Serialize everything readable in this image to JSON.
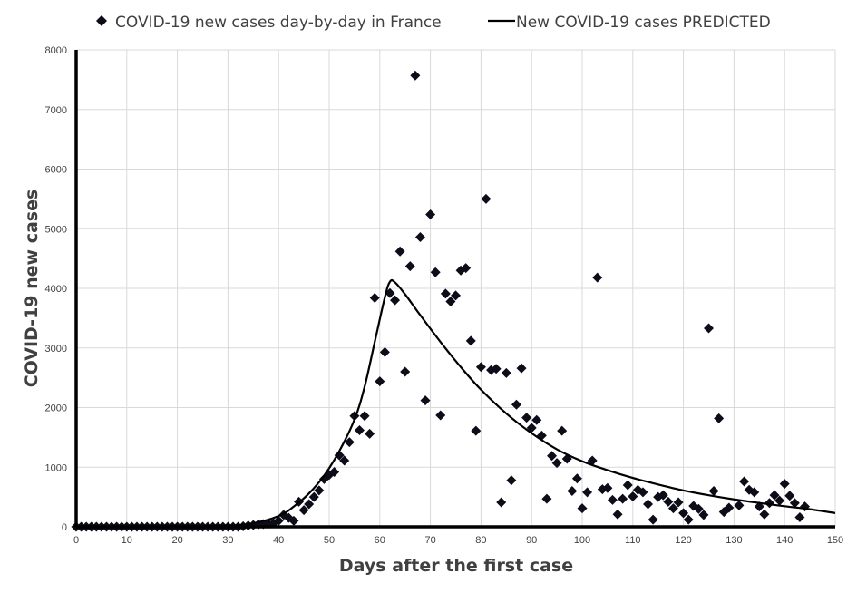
{
  "chart_data": {
    "type": "scatter",
    "title": "",
    "xlabel": "Days after the first case",
    "ylabel": "COVID-19 new cases",
    "xlim": [
      0,
      150
    ],
    "ylim": [
      0,
      8000
    ],
    "x_ticks": [
      0,
      10,
      20,
      30,
      40,
      50,
      60,
      70,
      80,
      90,
      100,
      110,
      120,
      130,
      140,
      150
    ],
    "y_ticks": [
      0,
      1000,
      2000,
      3000,
      4000,
      5000,
      6000,
      7000,
      8000
    ],
    "grid": true,
    "legend_position": "top",
    "series": [
      {
        "name": "COVID-19 new cases day-by-day in France",
        "kind": "markers",
        "marker": "diamond",
        "color": "#0d0d1a",
        "points": [
          [
            0,
            0
          ],
          [
            1,
            0
          ],
          [
            2,
            0
          ],
          [
            3,
            0
          ],
          [
            4,
            0
          ],
          [
            5,
            0
          ],
          [
            6,
            0
          ],
          [
            7,
            0
          ],
          [
            8,
            0
          ],
          [
            9,
            0
          ],
          [
            10,
            0
          ],
          [
            11,
            0
          ],
          [
            12,
            0
          ],
          [
            13,
            0
          ],
          [
            14,
            0
          ],
          [
            15,
            0
          ],
          [
            16,
            0
          ],
          [
            17,
            0
          ],
          [
            18,
            0
          ],
          [
            19,
            0
          ],
          [
            20,
            0
          ],
          [
            21,
            0
          ],
          [
            22,
            0
          ],
          [
            23,
            0
          ],
          [
            24,
            0
          ],
          [
            25,
            0
          ],
          [
            26,
            0
          ],
          [
            27,
            0
          ],
          [
            28,
            0
          ],
          [
            29,
            0
          ],
          [
            30,
            0
          ],
          [
            31,
            0
          ],
          [
            32,
            0
          ],
          [
            33,
            10
          ],
          [
            34,
            20
          ],
          [
            35,
            30
          ],
          [
            36,
            40
          ],
          [
            37,
            45
          ],
          [
            38,
            55
          ],
          [
            39,
            60
          ],
          [
            40,
            100
          ],
          [
            41,
            200
          ],
          [
            42,
            150
          ],
          [
            43,
            100
          ],
          [
            44,
            420
          ],
          [
            45,
            280
          ],
          [
            46,
            380
          ],
          [
            47,
            500
          ],
          [
            48,
            610
          ],
          [
            49,
            800
          ],
          [
            50,
            870
          ],
          [
            51,
            920
          ],
          [
            52,
            1200
          ],
          [
            53,
            1110
          ],
          [
            54,
            1420
          ],
          [
            55,
            1860
          ],
          [
            56,
            1620
          ],
          [
            57,
            1860
          ],
          [
            58,
            1560
          ],
          [
            59,
            3840
          ],
          [
            60,
            2440
          ],
          [
            61,
            2930
          ],
          [
            62,
            3920
          ],
          [
            63,
            3800
          ],
          [
            64,
            4620
          ],
          [
            65,
            2600
          ],
          [
            66,
            4370
          ],
          [
            67,
            7570
          ],
          [
            68,
            4860
          ],
          [
            69,
            2120
          ],
          [
            70,
            5240
          ],
          [
            71,
            4270
          ],
          [
            72,
            1870
          ],
          [
            73,
            3910
          ],
          [
            74,
            3780
          ],
          [
            75,
            3880
          ],
          [
            76,
            4300
          ],
          [
            77,
            4340
          ],
          [
            78,
            3120
          ],
          [
            79,
            1610
          ],
          [
            80,
            2680
          ],
          [
            81,
            5500
          ],
          [
            82,
            2630
          ],
          [
            83,
            2650
          ],
          [
            84,
            410
          ],
          [
            85,
            2580
          ],
          [
            86,
            780
          ],
          [
            87,
            2050
          ],
          [
            88,
            2660
          ],
          [
            89,
            1830
          ],
          [
            90,
            1660
          ],
          [
            91,
            1790
          ],
          [
            92,
            1530
          ],
          [
            93,
            470
          ],
          [
            94,
            1190
          ],
          [
            95,
            1070
          ],
          [
            96,
            1610
          ],
          [
            97,
            1140
          ],
          [
            98,
            600
          ],
          [
            99,
            810
          ],
          [
            100,
            310
          ],
          [
            101,
            580
          ],
          [
            102,
            1110
          ],
          [
            103,
            4180
          ],
          [
            104,
            630
          ],
          [
            105,
            650
          ],
          [
            106,
            450
          ],
          [
            107,
            210
          ],
          [
            108,
            470
          ],
          [
            109,
            700
          ],
          [
            110,
            510
          ],
          [
            111,
            620
          ],
          [
            112,
            580
          ],
          [
            113,
            380
          ],
          [
            114,
            120
          ],
          [
            115,
            500
          ],
          [
            116,
            530
          ],
          [
            117,
            420
          ],
          [
            118,
            310
          ],
          [
            119,
            410
          ],
          [
            120,
            230
          ],
          [
            121,
            120
          ],
          [
            122,
            350
          ],
          [
            123,
            300
          ],
          [
            124,
            200
          ],
          [
            125,
            3330
          ],
          [
            126,
            600
          ],
          [
            127,
            1820
          ],
          [
            128,
            250
          ],
          [
            129,
            320
          ],
          [
            131,
            360
          ],
          [
            132,
            760
          ],
          [
            133,
            620
          ],
          [
            134,
            580
          ],
          [
            135,
            340
          ],
          [
            136,
            210
          ],
          [
            137,
            400
          ],
          [
            138,
            530
          ],
          [
            139,
            440
          ],
          [
            140,
            720
          ],
          [
            141,
            520
          ],
          [
            142,
            400
          ],
          [
            143,
            160
          ],
          [
            144,
            340
          ]
        ]
      },
      {
        "name": "New COVID-19 cases PREDICTED",
        "kind": "line",
        "color": "#000000",
        "points": [
          [
            0,
            0
          ],
          [
            10,
            0
          ],
          [
            20,
            0
          ],
          [
            30,
            15
          ],
          [
            35,
            60
          ],
          [
            40,
            180
          ],
          [
            43,
            340
          ],
          [
            46,
            560
          ],
          [
            49,
            860
          ],
          [
            52,
            1270
          ],
          [
            55,
            1800
          ],
          [
            57,
            2350
          ],
          [
            59,
            3100
          ],
          [
            61,
            3850
          ],
          [
            62,
            4110
          ],
          [
            63,
            4100
          ],
          [
            65,
            3900
          ],
          [
            68,
            3550
          ],
          [
            72,
            3100
          ],
          [
            76,
            2680
          ],
          [
            80,
            2300
          ],
          [
            85,
            1900
          ],
          [
            90,
            1570
          ],
          [
            95,
            1300
          ],
          [
            100,
            1100
          ],
          [
            105,
            950
          ],
          [
            110,
            820
          ],
          [
            115,
            710
          ],
          [
            120,
            610
          ],
          [
            125,
            530
          ],
          [
            130,
            460
          ],
          [
            135,
            400
          ],
          [
            140,
            345
          ],
          [
            145,
            295
          ],
          [
            150,
            230
          ]
        ]
      }
    ]
  }
}
